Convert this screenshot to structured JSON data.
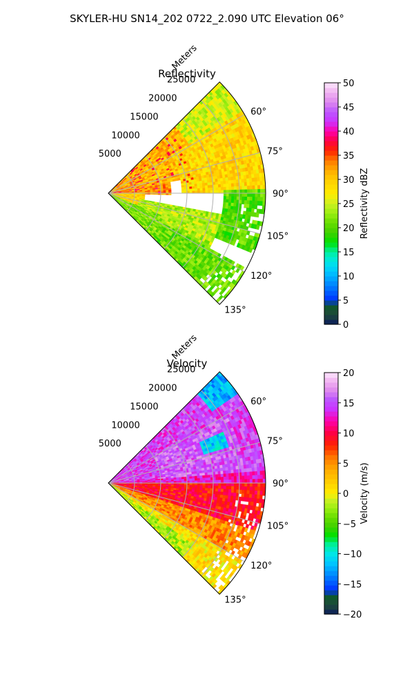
{
  "figure": {
    "title": "SKYLER-HU  SN14_202  0722_2.090 UTC Elevation 06°"
  },
  "chart_data": [
    {
      "type": "heatmap",
      "projection": "polar-sector",
      "title": "Reflectivity",
      "radial_label": "Meters",
      "radial_ticks": [
        5000,
        10000,
        15000,
        20000,
        25000
      ],
      "radial_tick_labels": [
        "5000",
        "10000",
        "15000",
        "20000",
        "25000"
      ],
      "range_max": 30000,
      "azimuth_range_deg": [
        45,
        135
      ],
      "azimuth_ticks": [
        60,
        75,
        90,
        105,
        120,
        135
      ],
      "azimuth_tick_labels": [
        "60°",
        "75°",
        "90°",
        "105°",
        "120°",
        "135°"
      ],
      "grid": true,
      "colorbar": {
        "label": "Reflectivity dBZ",
        "range": [
          0,
          50
        ],
        "ticks": [
          0,
          5,
          10,
          15,
          20,
          25,
          30,
          35,
          40,
          45,
          50
        ],
        "tick_labels": [
          "0",
          "5",
          "10",
          "15",
          "20",
          "25",
          "30",
          "35",
          "40",
          "45",
          "50"
        ],
        "stops": [
          {
            "v": 0,
            "c": "#0a1a5e"
          },
          {
            "v": 2,
            "c": "#1f4a3a"
          },
          {
            "v": 4,
            "c": "#0d5a2a"
          },
          {
            "v": 5,
            "c": "#0030ff"
          },
          {
            "v": 7,
            "c": "#0066ff"
          },
          {
            "v": 9,
            "c": "#0099ff"
          },
          {
            "v": 11,
            "c": "#00c8ff"
          },
          {
            "v": 13,
            "c": "#00e6e6"
          },
          {
            "v": 15,
            "c": "#00f0a0"
          },
          {
            "v": 17,
            "c": "#00e000"
          },
          {
            "v": 19,
            "c": "#40d000"
          },
          {
            "v": 21,
            "c": "#66dd00"
          },
          {
            "v": 23,
            "c": "#99ee11"
          },
          {
            "v": 25,
            "c": "#ccf022"
          },
          {
            "v": 27,
            "c": "#ffee00"
          },
          {
            "v": 30,
            "c": "#ffcc00"
          },
          {
            "v": 32,
            "c": "#ffaa00"
          },
          {
            "v": 34,
            "c": "#ff7700"
          },
          {
            "v": 36,
            "c": "#ff2200"
          },
          {
            "v": 38,
            "c": "#ff0044"
          },
          {
            "v": 40,
            "c": "#ff00aa"
          },
          {
            "v": 42,
            "c": "#cc33ff"
          },
          {
            "v": 44,
            "c": "#bb55ff"
          },
          {
            "v": 46,
            "c": "#dd88ee"
          },
          {
            "v": 48,
            "c": "#f0b0f0"
          },
          {
            "v": 50,
            "c": "#fde6fd"
          }
        ]
      },
      "field_regions": [
        {
          "az": [
            45,
            62
          ],
          "r": [
            18000,
            30000
          ],
          "value": 25
        },
        {
          "az": [
            45,
            80
          ],
          "r": [
            0,
            18000
          ],
          "value": 31
        },
        {
          "az": [
            58,
            90
          ],
          "r": [
            14000,
            30000
          ],
          "value": 29
        },
        {
          "az": [
            80,
            92
          ],
          "r": [
            0,
            12000
          ],
          "value": 33
        },
        {
          "az": [
            90,
            120
          ],
          "r": [
            0,
            7000
          ],
          "value": 29
        },
        {
          "az": [
            88,
            112
          ],
          "r": [
            22000,
            30000
          ],
          "value": 20
        },
        {
          "az": [
            100,
            118
          ],
          "r": [
            6000,
            22000
          ],
          "value": 24
        },
        {
          "az": [
            112,
            135
          ],
          "r": [
            0,
            12000
          ],
          "value": 22
        },
        {
          "az": [
            118,
            135
          ],
          "r": [
            12000,
            30000
          ],
          "value": 21
        }
      ]
    },
    {
      "type": "heatmap",
      "projection": "polar-sector",
      "title": "Velocity",
      "radial_label": "Meters",
      "radial_ticks": [
        5000,
        10000,
        15000,
        20000,
        25000
      ],
      "radial_tick_labels": [
        "5000",
        "10000",
        "15000",
        "20000",
        "25000"
      ],
      "range_max": 30000,
      "azimuth_range_deg": [
        45,
        135
      ],
      "azimuth_ticks": [
        60,
        75,
        90,
        105,
        120,
        135
      ],
      "azimuth_tick_labels": [
        "60°",
        "75°",
        "90°",
        "105°",
        "120°",
        "135°"
      ],
      "grid": true,
      "colorbar": {
        "label": "Velocity (m/s)",
        "range": [
          -20,
          20
        ],
        "ticks": [
          -20,
          -15,
          -10,
          -5,
          0,
          5,
          10,
          15,
          20
        ],
        "tick_labels": [
          "−20",
          "−15",
          "−10",
          "−5",
          "0",
          "5",
          "10",
          "15",
          "20"
        ],
        "stops": [
          {
            "v": -20,
            "c": "#0a1a5e"
          },
          {
            "v": -18.5,
            "c": "#1f4a3a"
          },
          {
            "v": -17,
            "c": "#0d5a2a"
          },
          {
            "v": -16,
            "c": "#0030ff"
          },
          {
            "v": -14.5,
            "c": "#0066ff"
          },
          {
            "v": -13,
            "c": "#0099ff"
          },
          {
            "v": -11.5,
            "c": "#00c8ff"
          },
          {
            "v": -10,
            "c": "#00e6e6"
          },
          {
            "v": -8.5,
            "c": "#00f0a0"
          },
          {
            "v": -7,
            "c": "#00e000"
          },
          {
            "v": -5.5,
            "c": "#40d000"
          },
          {
            "v": -4,
            "c": "#66dd00"
          },
          {
            "v": -2.5,
            "c": "#99ee11"
          },
          {
            "v": -1,
            "c": "#ccf022"
          },
          {
            "v": 0,
            "c": "#ffee00"
          },
          {
            "v": 2,
            "c": "#ffcc00"
          },
          {
            "v": 4,
            "c": "#ffaa00"
          },
          {
            "v": 6,
            "c": "#ff7700"
          },
          {
            "v": 8,
            "c": "#ff2200"
          },
          {
            "v": 10,
            "c": "#ff0044"
          },
          {
            "v": 12,
            "c": "#ff00aa"
          },
          {
            "v": 14,
            "c": "#cc33ff"
          },
          {
            "v": 15.5,
            "c": "#bb55ff"
          },
          {
            "v": 17,
            "c": "#dd88ee"
          },
          {
            "v": 18.5,
            "c": "#f0b0f0"
          },
          {
            "v": 20,
            "c": "#fde6fd"
          }
        ]
      },
      "field_regions": [
        {
          "az": [
            45,
            90
          ],
          "r": [
            0,
            30000
          ],
          "value": 14.5
        },
        {
          "az": [
            60,
            90
          ],
          "r": [
            10000,
            26000
          ],
          "value": 15.5
        },
        {
          "az": [
            86,
            91
          ],
          "r": [
            0,
            30000
          ],
          "value": 12.5
        },
        {
          "az": [
            90,
            110
          ],
          "r": [
            0,
            30000
          ],
          "value": 9
        },
        {
          "az": [
            108,
            122
          ],
          "r": [
            0,
            30000
          ],
          "value": 5
        },
        {
          "az": [
            120,
            135
          ],
          "r": [
            0,
            30000
          ],
          "value": 1
        },
        {
          "az": [
            126,
            135
          ],
          "r": [
            0,
            20000
          ],
          "value": -2
        },
        {
          "az": [
            66,
            73
          ],
          "r": [
            19000,
            24000
          ],
          "value": -11
        },
        {
          "az": [
            45,
            55
          ],
          "r": [
            24000,
            30000
          ],
          "value": -12
        }
      ]
    }
  ]
}
